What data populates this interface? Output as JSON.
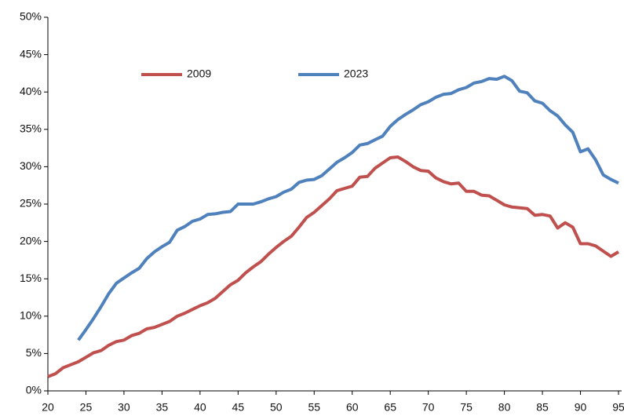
{
  "chart_data": {
    "type": "line",
    "x": [
      20,
      21,
      22,
      23,
      24,
      25,
      26,
      27,
      28,
      29,
      30,
      31,
      32,
      33,
      34,
      35,
      36,
      37,
      38,
      39,
      40,
      41,
      42,
      43,
      44,
      45,
      46,
      47,
      48,
      49,
      50,
      51,
      52,
      53,
      54,
      55,
      56,
      57,
      58,
      59,
      60,
      61,
      62,
      63,
      64,
      65,
      66,
      67,
      68,
      69,
      70,
      71,
      72,
      73,
      74,
      75,
      76,
      77,
      78,
      79,
      80,
      81,
      82,
      83,
      84,
      85,
      86,
      87,
      88,
      89,
      90,
      91,
      92,
      93,
      94,
      95
    ],
    "series": [
      {
        "name": "2009",
        "color": "#c0504d",
        "values": [
          1.9,
          2.3,
          3.1,
          3.5,
          3.9,
          4.5,
          5.1,
          5.4,
          6.1,
          6.6,
          6.8,
          7.4,
          7.7,
          8.3,
          8.5,
          8.9,
          9.3,
          10.0,
          10.4,
          10.9,
          11.4,
          11.8,
          12.4,
          13.3,
          14.2,
          14.8,
          15.8,
          16.6,
          17.3,
          18.3,
          19.2,
          20.0,
          20.7,
          21.9,
          23.2,
          23.9,
          24.8,
          25.7,
          26.8,
          27.1,
          27.4,
          28.6,
          28.7,
          29.8,
          30.5,
          31.2,
          31.3,
          30.7,
          30.0,
          29.5,
          29.4,
          28.5,
          28.0,
          27.7,
          27.8,
          26.7,
          26.7,
          26.2,
          26.1,
          25.5,
          24.9,
          24.6,
          24.5,
          24.4,
          23.5,
          23.6,
          23.4,
          21.8,
          22.5,
          21.9,
          19.7,
          19.7,
          19.4,
          18.7,
          18.0,
          18.6
        ]
      },
      {
        "name": "2023",
        "color": "#4f81bd",
        "values": [
          null,
          null,
          null,
          null,
          6.8,
          8.2,
          9.7,
          11.3,
          13.0,
          14.4,
          15.1,
          15.8,
          16.4,
          17.7,
          18.6,
          19.3,
          19.9,
          21.5,
          22.0,
          22.7,
          23.0,
          23.6,
          23.7,
          23.9,
          24.0,
          25.0,
          25.0,
          25.0,
          25.3,
          25.7,
          26.0,
          26.6,
          27.0,
          27.9,
          28.2,
          28.3,
          28.8,
          29.7,
          30.6,
          31.2,
          31.9,
          32.9,
          33.1,
          33.6,
          34.1,
          35.4,
          36.3,
          37.0,
          37.6,
          38.3,
          38.7,
          39.3,
          39.7,
          39.8,
          40.3,
          40.6,
          41.2,
          41.4,
          41.8,
          41.7,
          42.1,
          41.5,
          40.1,
          39.9,
          38.8,
          38.5,
          37.5,
          36.8,
          35.6,
          34.6,
          32.0,
          32.4,
          30.9,
          28.9,
          28.3,
          27.8
        ]
      }
    ],
    "xlim": [
      20,
      95
    ],
    "xticks": [
      20,
      25,
      30,
      35,
      40,
      45,
      50,
      55,
      60,
      65,
      70,
      75,
      80,
      85,
      90,
      95
    ],
    "ylim": [
      0,
      50
    ],
    "yticks": [
      {
        "value": 0,
        "label": "0%"
      },
      {
        "value": 5,
        "label": "5%"
      },
      {
        "value": 10,
        "label": "10%"
      },
      {
        "value": 15,
        "label": "15%"
      },
      {
        "value": 20,
        "label": "20%"
      },
      {
        "value": 25,
        "label": "25%"
      },
      {
        "value": 30,
        "label": "30%"
      },
      {
        "value": 35,
        "label": "35%"
      },
      {
        "value": 40,
        "label": "40%"
      },
      {
        "value": 45,
        "label": "45%"
      },
      {
        "value": 50,
        "label": "50%"
      }
    ],
    "legend": "upper left",
    "grid": false
  }
}
